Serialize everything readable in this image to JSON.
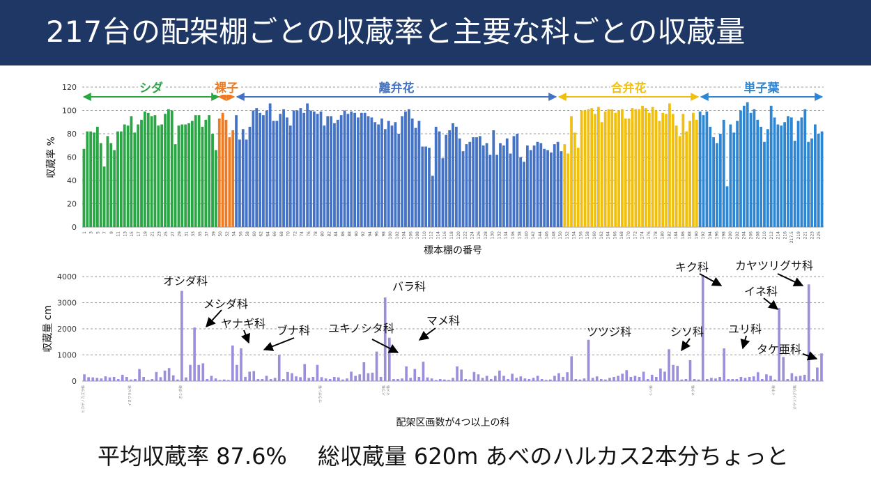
{
  "slide_title": "217台の配架棚ごとの収蔵率と主要な科ごとの収蔵量",
  "summary": {
    "rate_text": "平均収蔵率 87.6%",
    "volume_text": "総収蔵量 620m あべのハルカス2本分ちょっと"
  },
  "colors": {
    "title_bg": "#1e3765",
    "shida": "#2aa645",
    "rashi": "#ee7b22",
    "ribenka": "#4472c4",
    "gobenka": "#f1bf10",
    "tanshiyou": "#2e86d2",
    "family_bar": "#9b8fdc"
  },
  "chart_data": [
    {
      "type": "bar",
      "title": "",
      "xlabel": "標本棚の番号",
      "ylabel": "収蔵率 %",
      "ylim": [
        0,
        120
      ],
      "yticks": [
        0,
        20,
        40,
        60,
        80,
        100,
        120
      ],
      "groups": [
        {
          "name": "シダ",
          "color": "#2aa645",
          "values": [
            67,
            82,
            82,
            81,
            86,
            72,
            52,
            78,
            72,
            66,
            82,
            82,
            88,
            87,
            95,
            81,
            88,
            92,
            99,
            98,
            95,
            96,
            87,
            88,
            97,
            101,
            100,
            71,
            87,
            88,
            88,
            89,
            91,
            96,
            96,
            86,
            92,
            96,
            80,
            66
          ]
        },
        {
          "name": "裸子",
          "color": "#ee7b22",
          "values": [
            93,
            98,
            92,
            77,
            83
          ]
        },
        {
          "name": "離弁花",
          "color": "#4472c4",
          "values": [
            96,
            75,
            84,
            75,
            86,
            100,
            102,
            98,
            96,
            100,
            106,
            91,
            91,
            97,
            101,
            94,
            87,
            100,
            100,
            102,
            98,
            106,
            100,
            99,
            97,
            99,
            87,
            95,
            95,
            89,
            92,
            96,
            100,
            97,
            99,
            98,
            94,
            98,
            98,
            95,
            94,
            90,
            88,
            93,
            84,
            91,
            87,
            90,
            80,
            95,
            99,
            101,
            93,
            85,
            91,
            69,
            69,
            68,
            44,
            86,
            82,
            59,
            79,
            83,
            89,
            86,
            76,
            65,
            71,
            73,
            77,
            77,
            78,
            70,
            72,
            62,
            83,
            62,
            72,
            70,
            76,
            63,
            78,
            80,
            60,
            56,
            70,
            66,
            70,
            73,
            72,
            67,
            66,
            64,
            71,
            73,
            65
          ]
        },
        {
          "name": "合弁花",
          "color": "#f1bf10",
          "values": [
            71,
            63,
            95,
            81,
            68,
            100,
            100,
            101,
            102,
            97,
            103,
            90,
            99,
            101,
            101,
            98,
            100,
            101,
            93,
            93,
            102,
            101,
            101,
            104,
            102,
            98,
            103,
            100,
            91,
            98,
            97,
            106,
            97,
            87,
            78,
            97,
            82,
            91,
            98,
            92
          ]
        },
        {
          "name": "単子葉",
          "color": "#2e86d2",
          "values": [
            99,
            96,
            99,
            86,
            77,
            72,
            80,
            92,
            35,
            88,
            81,
            91,
            100,
            104,
            107,
            98,
            101,
            92,
            86,
            73,
            84,
            104,
            94,
            88,
            87,
            90,
            95,
            94,
            74,
            91,
            94,
            101,
            73,
            76,
            88,
            80,
            82
          ]
        }
      ],
      "xticks": [
        "1",
        "3",
        "5",
        "7",
        "9",
        "11",
        "13",
        "15",
        "17",
        "19",
        "21",
        "23",
        "25",
        "27",
        "29",
        "31",
        "33",
        "35",
        "37",
        "39",
        "50",
        "52",
        "54",
        "56",
        "58",
        "60",
        "62",
        "64",
        "66",
        "68",
        "70",
        "72",
        "74",
        "76",
        "78",
        "80",
        "82",
        "84",
        "86",
        "88",
        "90",
        "92",
        "94",
        "96",
        "98",
        "100",
        "102",
        "104",
        "106",
        "108",
        "110",
        "112",
        "114",
        "116",
        "118",
        "120",
        "122",
        "124",
        "126",
        "128",
        "130",
        "132",
        "134",
        "136",
        "138",
        "140",
        "142",
        "144",
        "146",
        "148",
        "150",
        "152",
        "154",
        "156",
        "158",
        "160",
        "162",
        "164",
        "166",
        "168",
        "170",
        "172",
        "174",
        "176",
        "178",
        "180",
        "182",
        "184",
        "186",
        "188",
        "190",
        "192",
        "194",
        "196",
        "198",
        "200",
        "202",
        "204",
        "206",
        "208",
        "210",
        "212",
        "214",
        "216",
        "217.5",
        "219",
        "221",
        "223",
        "225"
      ],
      "annotations": [
        "シダ",
        "裸子",
        "離弁花",
        "合弁花",
        "単子葉"
      ]
    },
    {
      "type": "bar",
      "title": "",
      "xlabel": "配架区画数が4つ以上の科",
      "ylabel": "収蔵量 cm",
      "ylim": [
        0,
        4000
      ],
      "yticks": [
        0,
        1000,
        2000,
        3000,
        4000
      ],
      "values": [
        260,
        150,
        140,
        120,
        100,
        180,
        140,
        160,
        80,
        240,
        160,
        60,
        80,
        460,
        160,
        40,
        80,
        350,
        150,
        400,
        500,
        220,
        60,
        3450,
        140,
        620,
        2050,
        620,
        680,
        80,
        200,
        100,
        40,
        60,
        40,
        1360,
        620,
        1250,
        160,
        360,
        380,
        80,
        80,
        200,
        80,
        120,
        1000,
        80,
        350,
        300,
        180,
        150,
        650,
        120,
        160,
        620,
        150,
        100,
        80,
        160,
        140,
        60,
        100,
        360,
        200,
        260,
        720,
        300,
        320,
        1130,
        160,
        3200,
        1660,
        80,
        80,
        100,
        560,
        120,
        460,
        160,
        740,
        140,
        100,
        40,
        80,
        60,
        40,
        120,
        560,
        440,
        80,
        60,
        350,
        260,
        120,
        200,
        80,
        200,
        400,
        200,
        80,
        280,
        120,
        180,
        100,
        80,
        120,
        200,
        80,
        40,
        60,
        200,
        300,
        160,
        340,
        950,
        80,
        60,
        100,
        1580,
        120,
        180,
        80,
        60,
        120,
        160,
        200,
        280,
        420,
        160,
        200,
        160,
        360,
        80,
        240,
        160,
        480,
        360,
        1220,
        620,
        580,
        60,
        80,
        800,
        80,
        60,
        4000,
        80,
        120,
        100,
        160,
        1250,
        80,
        80,
        80,
        160,
        120,
        160,
        180,
        340,
        80,
        260,
        200,
        60,
        2800,
        920,
        80,
        300,
        180,
        200,
        240,
        3700,
        80,
        520,
        1060
      ],
      "xticks": [
        "ヒカゲノカズラ科",
        "イヌワラビ科",
        "オシダ科",
        "ウラボシ科",
        "キク科",
        "イネ科",
        "カヤツリグサ科",
        "バラ科",
        "マメ科",
        "シソ科"
      ],
      "annotations": [
        "オシダ科",
        "メシダ科",
        "ヤナギ科",
        "ブナ科",
        "ユキノシタ科",
        "バラ科",
        "マメ科",
        "ツツジ科",
        "シソ科",
        "キク科",
        "ユリ科",
        "カヤツリグサ科",
        "イネ科",
        "タケ亜科"
      ]
    }
  ]
}
